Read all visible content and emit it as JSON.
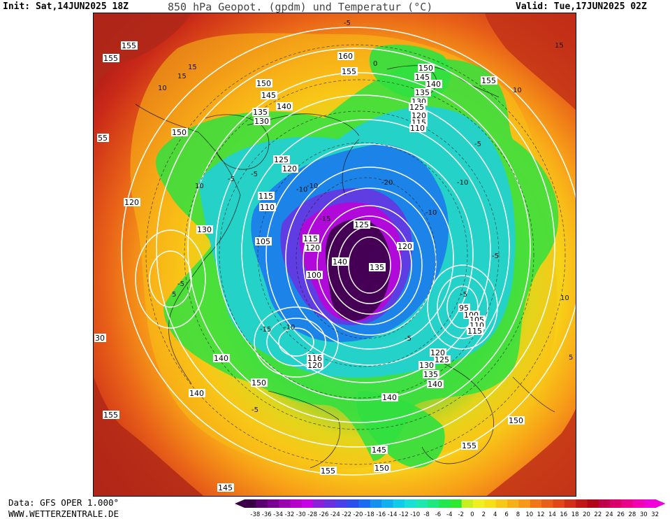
{
  "header": {
    "init": "Init: Sat,14JUN2025 18Z",
    "title": "850 hPa Geopot. (gpdm) und Temperatur (°C)",
    "valid": "Valid: Tue,17JUN2025 02Z"
  },
  "footer": {
    "data": "Data: GFS OPER 1.000°",
    "site": "WWW.WETTERZENTRALE.DE"
  },
  "colorbar": {
    "ticks": [
      "-38",
      "-36",
      "-34",
      "-32",
      "-30",
      "-28",
      "-26",
      "-24",
      "-22",
      "-20",
      "-18",
      "-16",
      "-14",
      "-12",
      "-10",
      "-8",
      "-6",
      "-4",
      "-2",
      "0",
      "2",
      "4",
      "6",
      "8",
      "10",
      "12",
      "14",
      "16",
      "18",
      "20",
      "22",
      "24",
      "26",
      "28",
      "30",
      "32"
    ],
    "colors": [
      "#3a0046",
      "#5a0070",
      "#7a0090",
      "#9a00b0",
      "#b400c8",
      "#c600e0",
      "#8a20d8",
      "#6a30e0",
      "#4a40e8",
      "#2a50ee",
      "#1a6cf0",
      "#1490f0",
      "#10b0f0",
      "#10cce8",
      "#18e0d8",
      "#1ee8b0",
      "#20e880",
      "#22e850",
      "#30e830",
      "#c8f020",
      "#f0f020",
      "#f8e018",
      "#f8c818",
      "#f8b018",
      "#f89818",
      "#f07818",
      "#e86018",
      "#e04818",
      "#d03018",
      "#c01818",
      "#b00818",
      "#c0004a",
      "#d8006a",
      "#e8008a",
      "#f000b0",
      "#f000d8"
    ]
  },
  "map": {
    "labels": [
      {
        "text": "155"
      },
      {
        "text": "155"
      },
      {
        "text": "160"
      },
      {
        "text": "155"
      },
      {
        "text": "150"
      },
      {
        "text": "145"
      },
      {
        "text": "150"
      },
      {
        "text": "145"
      },
      {
        "text": "140"
      },
      {
        "text": "135"
      },
      {
        "text": "140"
      },
      {
        "text": "135"
      },
      {
        "text": "130"
      },
      {
        "text": "130"
      },
      {
        "text": "125"
      },
      {
        "text": "120"
      },
      {
        "text": "115"
      },
      {
        "text": "110"
      },
      {
        "text": "150"
      },
      {
        "text": "125"
      },
      {
        "text": "120"
      },
      {
        "text": "115"
      },
      {
        "text": "110"
      },
      {
        "text": "120"
      },
      {
        "text": "130"
      },
      {
        "text": "105"
      },
      {
        "text": "115"
      },
      {
        "text": "120"
      },
      {
        "text": "125"
      },
      {
        "text": "140"
      },
      {
        "text": "135"
      },
      {
        "text": "120"
      },
      {
        "text": "100"
      },
      {
        "text": "95"
      },
      {
        "text": "100"
      },
      {
        "text": "105"
      },
      {
        "text": "110"
      },
      {
        "text": "115"
      },
      {
        "text": "120"
      },
      {
        "text": "125"
      },
      {
        "text": "130"
      },
      {
        "text": "135"
      },
      {
        "text": "140"
      },
      {
        "text": "116"
      },
      {
        "text": "120"
      },
      {
        "text": "140"
      },
      {
        "text": "150"
      },
      {
        "text": "140"
      },
      {
        "text": "140"
      },
      {
        "text": "155"
      },
      {
        "text": "150"
      },
      {
        "text": "155"
      },
      {
        "text": "145"
      },
      {
        "text": "150"
      },
      {
        "text": "155"
      },
      {
        "text": "145"
      },
      {
        "text": "155"
      },
      {
        "text": "55"
      },
      {
        "text": "30"
      }
    ],
    "isotherms": [
      {
        "text": "-5"
      },
      {
        "text": "0"
      },
      {
        "text": "10"
      },
      {
        "text": "15"
      },
      {
        "text": "-5"
      },
      {
        "text": "-10"
      },
      {
        "text": "-5"
      },
      {
        "text": "-10"
      },
      {
        "text": "-20"
      },
      {
        "text": "-15"
      },
      {
        "text": "-10"
      },
      {
        "text": "-5"
      },
      {
        "text": "-10"
      },
      {
        "text": "-5"
      },
      {
        "text": "-5"
      },
      {
        "text": "-15"
      },
      {
        "text": "-10"
      },
      {
        "text": "-5"
      },
      {
        "text": "5"
      },
      {
        "text": "10"
      },
      {
        "text": "10"
      },
      {
        "text": "15"
      },
      {
        "text": "-5"
      },
      {
        "text": "-5"
      },
      {
        "text": "10"
      },
      {
        "text": "5"
      },
      {
        "text": "15"
      },
      {
        "text": "-5"
      }
    ]
  }
}
